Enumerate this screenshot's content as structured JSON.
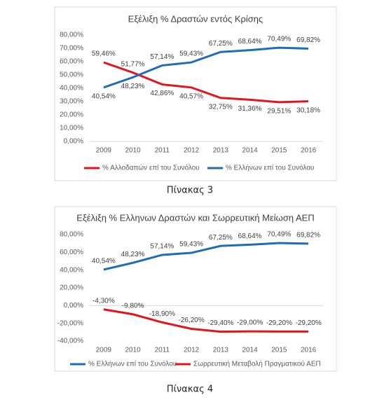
{
  "chart_data": [
    {
      "type": "line",
      "title": "Εξέλιξη % Δραστών εντός Κρίσης",
      "caption": "Πίνακας 3",
      "categories": [
        "2009",
        "2010",
        "2011",
        "2012",
        "2013",
        "2014",
        "2015",
        "2016"
      ],
      "series": [
        {
          "name": "% Αλλοδαπών επί του Συνόλου",
          "color": "#e0161e",
          "values": [
            59.46,
            51.77,
            42.86,
            40.57,
            32.75,
            31.36,
            29.51,
            30.18
          ],
          "value_labels": [
            "59,46%",
            "51,77%",
            "42,86%",
            "40,57%",
            "32,75%",
            "31,36%",
            "29,51%",
            "30,18%"
          ]
        },
        {
          "name": "% Ελλήνων επί του Συνόλου",
          "color": "#1f6db5",
          "values": [
            40.54,
            48.23,
            57.14,
            59.43,
            67.25,
            68.64,
            70.49,
            69.82
          ],
          "value_labels": [
            "40,54%",
            "48,23%",
            "57,14%",
            "59,43%",
            "67,25%",
            "68,64%",
            "70,49%",
            "69,82%"
          ]
        }
      ],
      "ylim": [
        0,
        80
      ],
      "yticks": [
        {
          "value": 0,
          "label": "0,00%"
        },
        {
          "value": 10,
          "label": "10,00%"
        },
        {
          "value": 20,
          "label": "20,00%"
        },
        {
          "value": 30,
          "label": "30,00%"
        },
        {
          "value": 40,
          "label": "40,00%"
        },
        {
          "value": 50,
          "label": "50,00%"
        },
        {
          "value": 60,
          "label": "60,00%"
        },
        {
          "value": 70,
          "label": "70,00%"
        },
        {
          "value": 80,
          "label": "80,00%"
        }
      ],
      "grid": false,
      "legend": "bottom"
    },
    {
      "type": "line",
      "title": "Εξέλιξη % Ελληνων Δραστών και Σωρρευτική Μείωση ΑΕΠ",
      "caption": "Πίνακας 4",
      "categories": [
        "2009",
        "2010",
        "2011",
        "2012",
        "2013",
        "2014",
        "2015",
        "2016"
      ],
      "series": [
        {
          "name": "% Ελλήνων επί του Συνόλου",
          "color": "#1f6db5",
          "values": [
            40.54,
            48.23,
            57.14,
            59.43,
            67.25,
            68.64,
            70.49,
            69.82
          ],
          "value_labels": [
            "40,54%",
            "48,23%",
            "57,14%",
            "59,43%",
            "67,25%",
            "68,64%",
            "70,49%",
            "69,82%"
          ]
        },
        {
          "name": "Σωρρευτική Μεταβολή Πραγματικού ΑΕΠ",
          "color": "#e0161e",
          "values": [
            -4.3,
            -9.8,
            -18.9,
            -26.2,
            -29.4,
            -29.0,
            -29.2,
            -29.2
          ],
          "value_labels": [
            "-4,30%",
            "-9,80%",
            "-18,90%",
            "-26,20%",
            "-29,40%",
            "-29,00%",
            "-29,20%",
            "-29,20%"
          ]
        }
      ],
      "ylim": [
        -40,
        80
      ],
      "yticks": [
        {
          "value": -40,
          "label": "-40,00%"
        },
        {
          "value": -20,
          "label": "-20,00%"
        },
        {
          "value": 0,
          "label": "0,00%"
        },
        {
          "value": 20,
          "label": "20,00%"
        },
        {
          "value": 40,
          "label": "40,00%"
        },
        {
          "value": 60,
          "label": "60,00%"
        },
        {
          "value": 80,
          "label": "80,00%"
        }
      ],
      "grid": false,
      "legend": "bottom"
    }
  ]
}
